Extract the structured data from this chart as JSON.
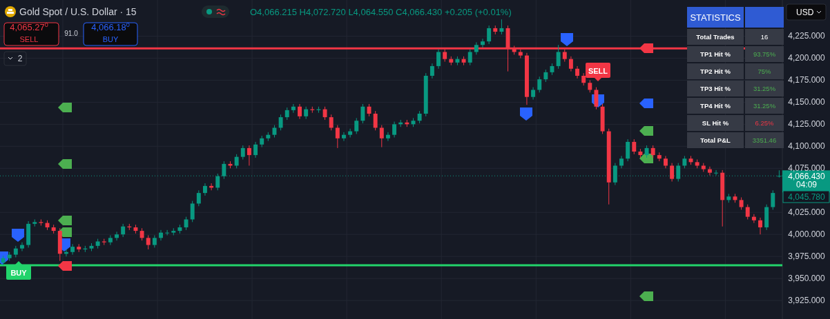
{
  "chart_data": [
    {
      "type": "candlestick",
      "title": "Gold Spot / U.S. Dollar · 15",
      "colors": [
        "#089981",
        "#089981",
        "#089981",
        "#089981",
        "#089981",
        "#089981",
        "#f23645",
        "#f23645",
        "#f23645",
        "#f23645",
        "#089981",
        "#089981",
        "#f23645",
        "#089981",
        "#089981",
        "#089981",
        "#f23645",
        "#089981",
        "#089981",
        "#089981",
        "#f23645",
        "#f23645",
        "#f23645",
        "#f23645",
        "#089981",
        "#089981",
        "#089981",
        "#089981",
        "#089981",
        "#089981",
        "#089981",
        "#089981",
        "#089981",
        "#f23645",
        "#089981",
        "#089981",
        "#f23645",
        "#089981",
        "#089981",
        "#f23645",
        "#089981",
        "#089981",
        "#089981",
        "#089981",
        "#089981",
        "#089981",
        "#089981",
        "#f23645",
        "#089981",
        "#f23645",
        "#089981",
        "#f23645",
        "#f23645",
        "#f23645",
        "#089981",
        "#089981",
        "#089981",
        "#089981",
        "#f23645",
        "#f23645",
        "#f23645",
        "#089981",
        "#089981",
        "#089981",
        "#f23645",
        "#089981",
        "#089981",
        "#089981",
        "#089981",
        "#089981",
        "#f23645",
        "#f23645",
        "#089981",
        "#f23645",
        "#089981",
        "#089981",
        "#089981",
        "#089981",
        "#f23645",
        "#089981",
        "#f23645",
        "#f23645",
        "#f23645",
        "#f23645",
        "#089981",
        "#089981",
        "#089981",
        "#089981",
        "#089981",
        "#f23645",
        "#f23645",
        "#f23645",
        "#f23645",
        "#f23645",
        "#f23645",
        "#f23645",
        "#f23645",
        "#089981",
        "#089981",
        "#089981",
        "#f23645",
        "#f23645",
        "#089981",
        "#f23645",
        "#f23645",
        "#f23645",
        "#f23645",
        "#089981",
        "#089981",
        "#f23645",
        "#f23645",
        "#f23645",
        "#f23645",
        "#089981",
        "#f23645",
        "#089981",
        "#f23645",
        "#f23645",
        "#f23645",
        "#f23645",
        "#f23645",
        "#089981",
        "#089981",
        "#089981"
      ],
      "grid": true,
      "tick_labels": "y",
      "categories": [
        null,
        null,
        null,
        null,
        null,
        null,
        null,
        null,
        null,
        null,
        null,
        null,
        null,
        null,
        null,
        null,
        null,
        null,
        null,
        null,
        null,
        null,
        null,
        null,
        null,
        null,
        null,
        null,
        null,
        null,
        null,
        null,
        null,
        null,
        null,
        null,
        null,
        null,
        null,
        null,
        null,
        null,
        null,
        null,
        null,
        null,
        null,
        null,
        null,
        null,
        null,
        null,
        null,
        null,
        null,
        null,
        null,
        null,
        null,
        null,
        null,
        null,
        null,
        null,
        null,
        null,
        null,
        null,
        null,
        null,
        null,
        null,
        null,
        null,
        null,
        null,
        null,
        null,
        null,
        null,
        null,
        null,
        null,
        null,
        null,
        null,
        null,
        null,
        null,
        null,
        null,
        null,
        null,
        null,
        null,
        null,
        null,
        null,
        null,
        null,
        null,
        null,
        null,
        null,
        null,
        null,
        null,
        null,
        null,
        null,
        null,
        null,
        null,
        null,
        null,
        null,
        null,
        null,
        null,
        null,
        null,
        null,
        null,
        null
      ],
      "ohlc": [
        [
          3968,
          3976,
          3965,
          3973
        ],
        [
          3973,
          3980,
          3970,
          3977
        ],
        [
          3977,
          3987,
          3974,
          3984
        ],
        [
          3984,
          3991,
          3981,
          3988
        ],
        [
          3988,
          4015,
          3985,
          4012
        ],
        [
          4012,
          4017,
          4009,
          4014
        ],
        [
          4014,
          4017,
          4010,
          4013
        ],
        [
          4013,
          4016,
          4005,
          4008
        ],
        [
          4008,
          4011,
          4001,
          4004
        ],
        [
          4004,
          4007,
          3970,
          3978
        ],
        [
          3978,
          3983,
          3975,
          3980
        ],
        [
          3980,
          3989,
          3977,
          3986
        ],
        [
          3986,
          3989,
          3980,
          3983
        ],
        [
          3983,
          3987,
          3980,
          3984
        ],
        [
          3984,
          3990,
          3981,
          3987
        ],
        [
          3987,
          3995,
          3984,
          3992
        ],
        [
          3992,
          3995,
          3988,
          3991
        ],
        [
          3991,
          3999,
          3988,
          3996
        ],
        [
          3996,
          4003,
          3993,
          4000
        ],
        [
          4000,
          4012,
          3997,
          4009
        ],
        [
          4009,
          4012,
          4005,
          4008
        ],
        [
          4008,
          4011,
          4001,
          4004
        ],
        [
          4004,
          4007,
          3993,
          3996
        ],
        [
          3996,
          3999,
          3983,
          3988
        ],
        [
          3988,
          3999,
          3985,
          3996
        ],
        [
          3996,
          4005,
          3993,
          4002
        ],
        [
          4002,
          4005,
          3999,
          4002
        ],
        [
          4002,
          4007,
          3999,
          4004
        ],
        [
          4004,
          4011,
          4001,
          4008
        ],
        [
          4008,
          4020,
          4005,
          4017
        ],
        [
          4017,
          4038,
          4014,
          4035
        ],
        [
          4035,
          4050,
          4032,
          4047
        ],
        [
          4047,
          4058,
          4044,
          4055
        ],
        [
          4055,
          4058,
          4050,
          4053
        ],
        [
          4053,
          4069,
          4050,
          4066
        ],
        [
          4066,
          4083,
          4063,
          4080
        ],
        [
          4080,
          4083,
          4075,
          4078
        ],
        [
          4078,
          4091,
          4075,
          4088
        ],
        [
          4088,
          4101,
          4085,
          4098
        ],
        [
          4098,
          4101,
          4078,
          4090
        ],
        [
          4090,
          4105,
          4087,
          4102
        ],
        [
          4102,
          4112,
          4099,
          4109
        ],
        [
          4109,
          4116,
          4106,
          4113
        ],
        [
          4113,
          4124,
          4110,
          4121
        ],
        [
          4121,
          4136,
          4118,
          4133
        ],
        [
          4133,
          4144,
          4130,
          4141
        ],
        [
          4141,
          4148,
          4138,
          4145
        ],
        [
          4145,
          4148,
          4131,
          4134
        ],
        [
          4134,
          4145,
          4131,
          4142
        ],
        [
          4142,
          4145,
          4138,
          4141
        ],
        [
          4141,
          4145,
          4138,
          4142
        ],
        [
          4142,
          4145,
          4130,
          4133
        ],
        [
          4133,
          4136,
          4118,
          4121
        ],
        [
          4121,
          4124,
          4098,
          4109
        ],
        [
          4109,
          4116,
          4106,
          4113
        ],
        [
          4113,
          4120,
          4110,
          4117
        ],
        [
          4117,
          4132,
          4114,
          4129
        ],
        [
          4129,
          4148,
          4126,
          4145
        ],
        [
          4145,
          4148,
          4134,
          4137
        ],
        [
          4137,
          4140,
          4118,
          4121
        ],
        [
          4121,
          4124,
          4099,
          4109
        ],
        [
          4109,
          4116,
          4106,
          4113
        ],
        [
          4113,
          4128,
          4110,
          4125
        ],
        [
          4125,
          4130,
          4122,
          4127
        ],
        [
          4127,
          4130,
          4122,
          4125
        ],
        [
          4125,
          4132,
          4122,
          4129
        ],
        [
          4129,
          4140,
          4126,
          4137
        ],
        [
          4137,
          4183,
          4134,
          4180
        ],
        [
          4180,
          4194,
          4177,
          4191
        ],
        [
          4191,
          4210,
          4188,
          4207
        ],
        [
          4207,
          4210,
          4196,
          4199
        ],
        [
          4199,
          4202,
          4192,
          4195
        ],
        [
          4195,
          4202,
          4192,
          4199
        ],
        [
          4199,
          4202,
          4192,
          4195
        ],
        [
          4195,
          4210,
          4192,
          4207
        ],
        [
          4207,
          4218,
          4204,
          4215
        ],
        [
          4215,
          4222,
          4212,
          4219
        ],
        [
          4219,
          4237,
          4216,
          4234
        ],
        [
          4234,
          4237,
          4227,
          4230
        ],
        [
          4230,
          4244,
          4227,
          4234
        ],
        [
          4234,
          4237,
          4185,
          4211
        ],
        [
          4211,
          4214,
          4204,
          4207
        ],
        [
          4207,
          4210,
          4200,
          4203
        ],
        [
          4203,
          4206,
          4147,
          4156
        ],
        [
          4156,
          4167,
          4153,
          4164
        ],
        [
          4164,
          4179,
          4161,
          4176
        ],
        [
          4176,
          4187,
          4173,
          4184
        ],
        [
          4184,
          4194,
          4181,
          4191
        ],
        [
          4191,
          4215,
          4188,
          4207
        ],
        [
          4207,
          4210,
          4196,
          4199
        ],
        [
          4199,
          4202,
          4185,
          4188
        ],
        [
          4188,
          4191,
          4177,
          4180
        ],
        [
          4180,
          4183,
          4169,
          4172
        ],
        [
          4172,
          4175,
          4161,
          4164
        ],
        [
          4164,
          4167,
          4142,
          4145
        ],
        [
          4145,
          4148,
          4114,
          4117
        ],
        [
          4117,
          4120,
          4034,
          4059
        ],
        [
          4059,
          4081,
          4056,
          4078
        ],
        [
          4078,
          4089,
          4075,
          4086
        ],
        [
          4086,
          4108,
          4083,
          4105
        ],
        [
          4105,
          4108,
          4091,
          4094
        ],
        [
          4094,
          4097,
          4087,
          4090
        ],
        [
          4090,
          4101,
          4087,
          4098
        ],
        [
          4098,
          4101,
          4087,
          4090
        ],
        [
          4090,
          4093,
          4083,
          4086
        ],
        [
          4086,
          4089,
          4075,
          4078
        ],
        [
          4078,
          4081,
          4060,
          4063
        ],
        [
          4063,
          4081,
          4060,
          4078
        ],
        [
          4078,
          4089,
          4075,
          4086
        ],
        [
          4086,
          4089,
          4079,
          4082
        ],
        [
          4082,
          4085,
          4075,
          4078
        ],
        [
          4078,
          4081,
          4071,
          4074
        ],
        [
          4074,
          4077,
          4067,
          4070
        ],
        [
          4070,
          4073,
          4067,
          4070
        ],
        [
          4070,
          4073,
          4009,
          4039
        ],
        [
          4039,
          4046,
          4036,
          4043
        ],
        [
          4043,
          4046,
          4036,
          4039
        ],
        [
          4039,
          4042,
          4028,
          4031
        ],
        [
          4031,
          4034,
          4017,
          4020
        ],
        [
          4020,
          4023,
          4013,
          4016
        ],
        [
          4016,
          4019,
          4000,
          4008
        ],
        [
          4008,
          4034,
          4005,
          4031
        ],
        [
          4031,
          4050,
          4028,
          4047
        ],
        [
          4066.215,
          4072.72,
          4064.55,
          4066.43
        ]
      ],
      "ylim": [
        3904,
        4266
      ],
      "yticks": [
        {
          "value": 3925,
          "label": "3,925.000"
        },
        {
          "value": 3950,
          "label": "3,950.000"
        },
        {
          "value": 3975,
          "label": "3,975.000"
        },
        {
          "value": 4000,
          "label": "4,000.000"
        },
        {
          "value": 4025,
          "label": "4,025.000"
        },
        {
          "value": 4075,
          "label": "4,075.000"
        },
        {
          "value": 4100,
          "label": "4,100.000"
        },
        {
          "value": 4125,
          "label": "4,125.000"
        },
        {
          "value": 4150,
          "label": "4,150.000"
        },
        {
          "value": 4175,
          "label": "4,175.000"
        },
        {
          "value": 4200,
          "label": "4,200.000"
        },
        {
          "value": 4225,
          "label": "4,225.000"
        }
      ],
      "ref_lines": [
        {
          "axis": "y",
          "value": 3965,
          "color": "#22d36b"
        },
        {
          "axis": "y",
          "value": 4211,
          "color": "#f23645"
        },
        {
          "axis": "y",
          "value": 4066.43,
          "label": "4,066.430",
          "color": "#089981",
          "line_style": "dotted"
        }
      ],
      "annotations": [
        "O4,066.215 H4,072.720 L4,064.550 C4,066.430 +0.205 (+0.01%)",
        "4,065.27$^{0}$",
        "SELL",
        "91.0",
        "4,066.18$^{0}$",
        "BUY",
        "2",
        "USD",
        "04:09",
        "4,045.780",
        "BUY",
        "SELL"
      ]
    },
    {
      "type": "other",
      "title": "STATISTICS",
      "categories": [
        "Total Trades",
        "TP1 Hit %",
        "TP2 Hit %",
        "TP3 Hit %",
        "TP4 Hit %",
        "SL Hit %",
        "Total P&L"
      ],
      "value_labels": [
        "16",
        "93.75%",
        "75%",
        "31.25%",
        "31.25%",
        "6.25%",
        "3351.46"
      ],
      "colors": [
        "#ffffff",
        "#4caf50",
        "#4caf50",
        "#4caf50",
        "#4caf50",
        "#f23645",
        "#4caf50"
      ]
    }
  ]
}
